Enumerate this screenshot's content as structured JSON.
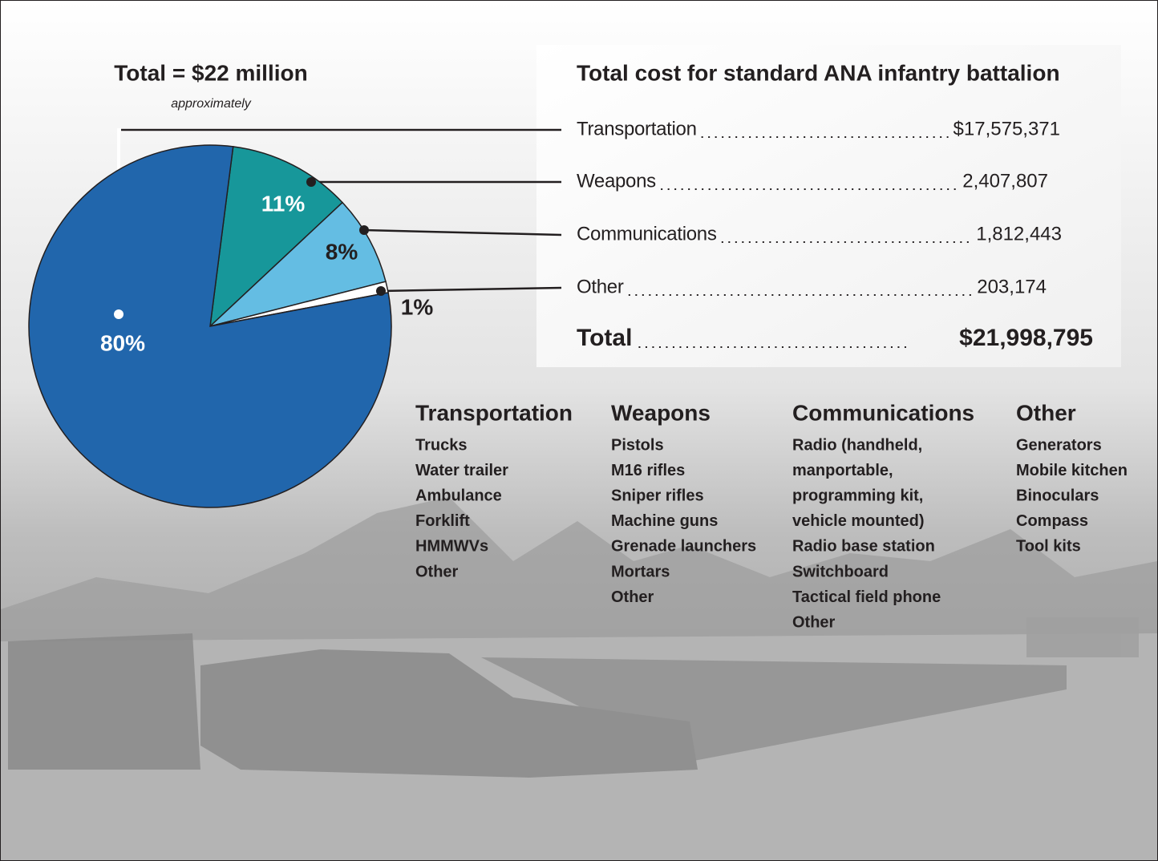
{
  "chart_data": {
    "type": "pie",
    "title": "Total =  $22 million",
    "subtitle": "approximately",
    "categories": [
      "Transportation",
      "Weapons",
      "Communications",
      "Other"
    ],
    "values": [
      80,
      11,
      8,
      1
    ],
    "value_labels": [
      "80%",
      "11%",
      "8%",
      "1%"
    ],
    "colors": [
      "#2166ac",
      "#17979a",
      "#64bde3",
      "#ffffff"
    ]
  },
  "table": {
    "title": "Total cost for standard ANA infantry battalion",
    "rows": [
      [
        "Transportation",
        "$17,575,371"
      ],
      [
        "Weapons",
        "2,407,807"
      ],
      [
        "Communications",
        "1,812,443"
      ],
      [
        "Other",
        "203,174"
      ]
    ],
    "total": [
      "Total",
      "$21,998,795"
    ]
  },
  "lists": [
    {
      "heading": "Transportation",
      "items": [
        "Trucks",
        "Water trailer",
        "Ambulance",
        "Forklift",
        "HMMWVs",
        "Other"
      ]
    },
    {
      "heading": "Weapons",
      "items": [
        "Pistols",
        "M16 rifles",
        "Sniper rifles",
        "Machine guns",
        "Grenade launchers",
        "Mortars",
        "Other"
      ]
    },
    {
      "heading": "Communications",
      "items": [
        "Radio (handheld,",
        "manportable,",
        "programming kit,",
        "vehicle mounted)",
        "Radio base station",
        "Switchboard",
        "Tactical field phone",
        "Other"
      ]
    },
    {
      "heading": "Other",
      "items": [
        "Generators",
        "Mobile kitchen",
        "Binoculars",
        "Compass",
        "Tool kits"
      ]
    }
  ]
}
